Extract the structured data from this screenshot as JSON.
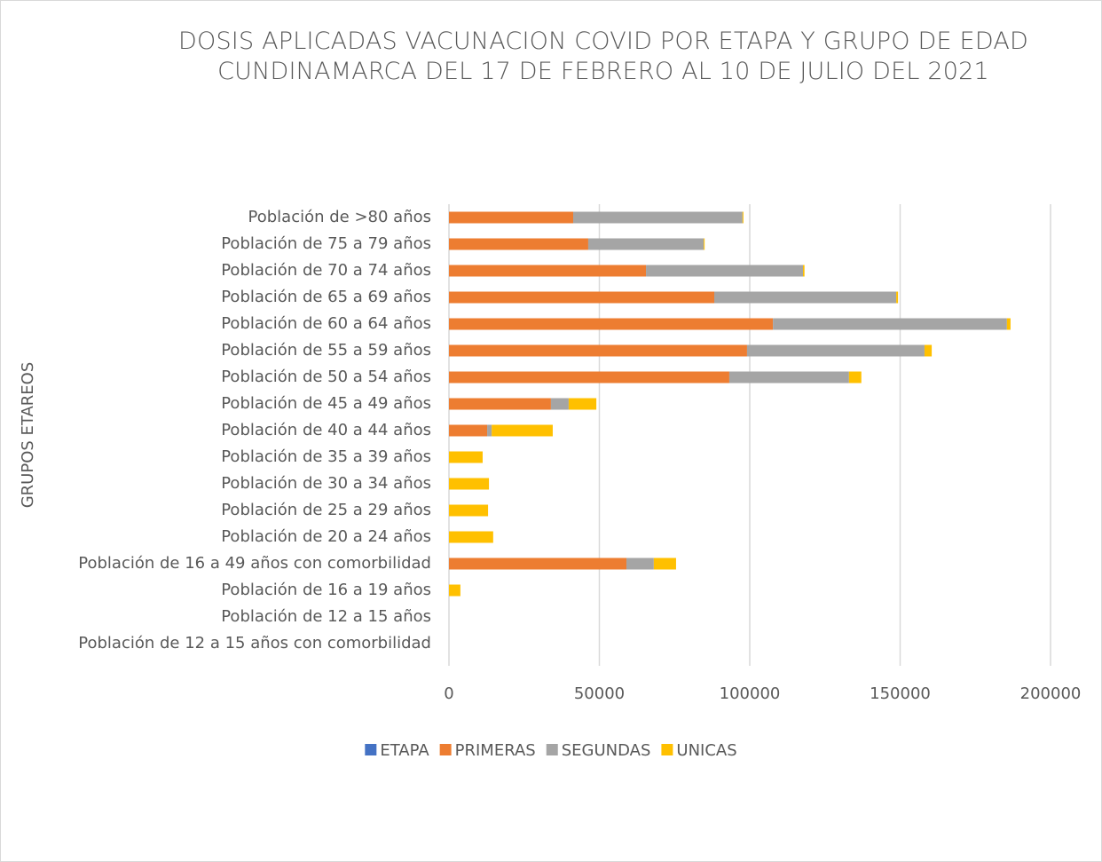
{
  "chart_data": {
    "type": "bar",
    "orientation": "horizontal",
    "stacked": true,
    "title": "DOSIS APLICADAS VACUNACION COVID POR ETAPA Y GRUPO DE EDAD CUNDINAMARCA DEL 17 DE FEBRERO AL 10 DE JULIO DEL 2021",
    "y_label": "GRUPOS ETAREOS",
    "categories": [
      "Población de >80 años",
      "Población de 75 a 79 años",
      "Población de 70 a 74 años",
      "Población de 65 a 69 años",
      "Población de 60 a 64 años",
      "Población de 55 a 59 años",
      "Población de 50 a 54 años",
      "Población de 45 a 49 años",
      "Población de 40 a 44 años",
      "Población de 35 a 39 años",
      "Población de 30 a 34 años",
      "Población de 25 a 29 años",
      "Población de 20 a 24 años",
      "Población de 16 a 49 años con comorbilidad",
      "Población de 16 a 19 años",
      "Población de 12 a 15 años",
      "Población de 12 a 15 años con comorbilidad"
    ],
    "series": [
      {
        "name": "ETAPA",
        "color": "#4472c4",
        "values": [
          0,
          0,
          0,
          0,
          0,
          0,
          0,
          0,
          0,
          0,
          0,
          0,
          0,
          0,
          0,
          0,
          0
        ]
      },
      {
        "name": "PRIMERAS",
        "color": "#ed7d31",
        "values": [
          41300,
          46300,
          65500,
          88200,
          107700,
          99100,
          93200,
          33900,
          12700,
          0,
          0,
          0,
          0,
          59000,
          0,
          0,
          0
        ]
      },
      {
        "name": "SEGUNDAS",
        "color": "#a5a5a5",
        "values": [
          56300,
          38400,
          52200,
          60500,
          77800,
          59000,
          39800,
          5900,
          1500,
          0,
          0,
          0,
          0,
          9100,
          0,
          0,
          0
        ]
      },
      {
        "name": "UNICAS",
        "color": "#ffc000",
        "values": [
          300,
          300,
          500,
          600,
          1200,
          2400,
          4100,
          9200,
          20300,
          11200,
          13300,
          13000,
          14700,
          7400,
          3800,
          0,
          0
        ]
      }
    ],
    "xlim": [
      0,
      200000
    ],
    "xticks": [
      0,
      50000,
      100000,
      150000,
      200000
    ],
    "grid": true,
    "legend": "bottom"
  }
}
